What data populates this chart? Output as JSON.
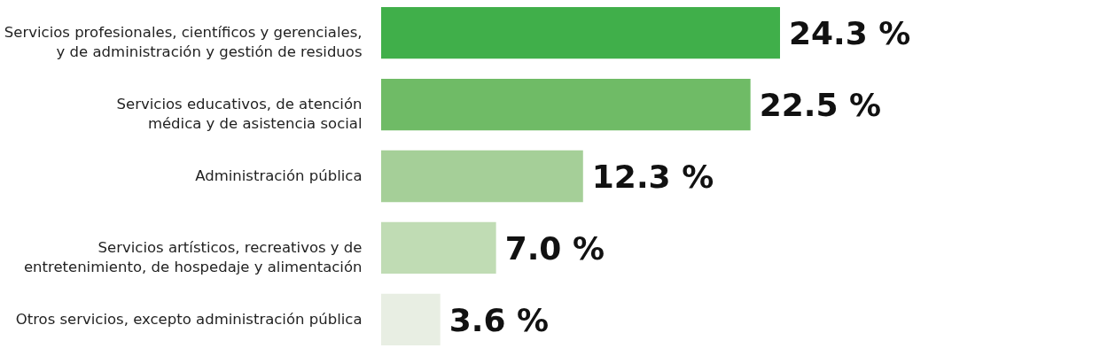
{
  "chart_data": {
    "type": "bar",
    "orientation": "horizontal",
    "categories": [
      "Servicios profesionales, científicos y gerenciales, y de administración y gestión de residuos",
      "Servicios educativos, de atención médica y de asistencia social",
      "Administración pública",
      "Servicios artísticos, recreativos y de entretenimiento, de hospedaje y alimentación",
      "Otros servicios, excepto administración pública"
    ],
    "values": [
      24.3,
      22.5,
      12.3,
      7.0,
      3.6
    ],
    "value_labels": [
      "24.3 %",
      "22.5 %",
      "12.3 %",
      "7.0 %",
      "3.6 %"
    ],
    "colors": [
      "#40af4a",
      "#6fbb66",
      "#a5cf98",
      "#c0dcb4",
      "#e8eee3"
    ],
    "grid": false
  }
}
